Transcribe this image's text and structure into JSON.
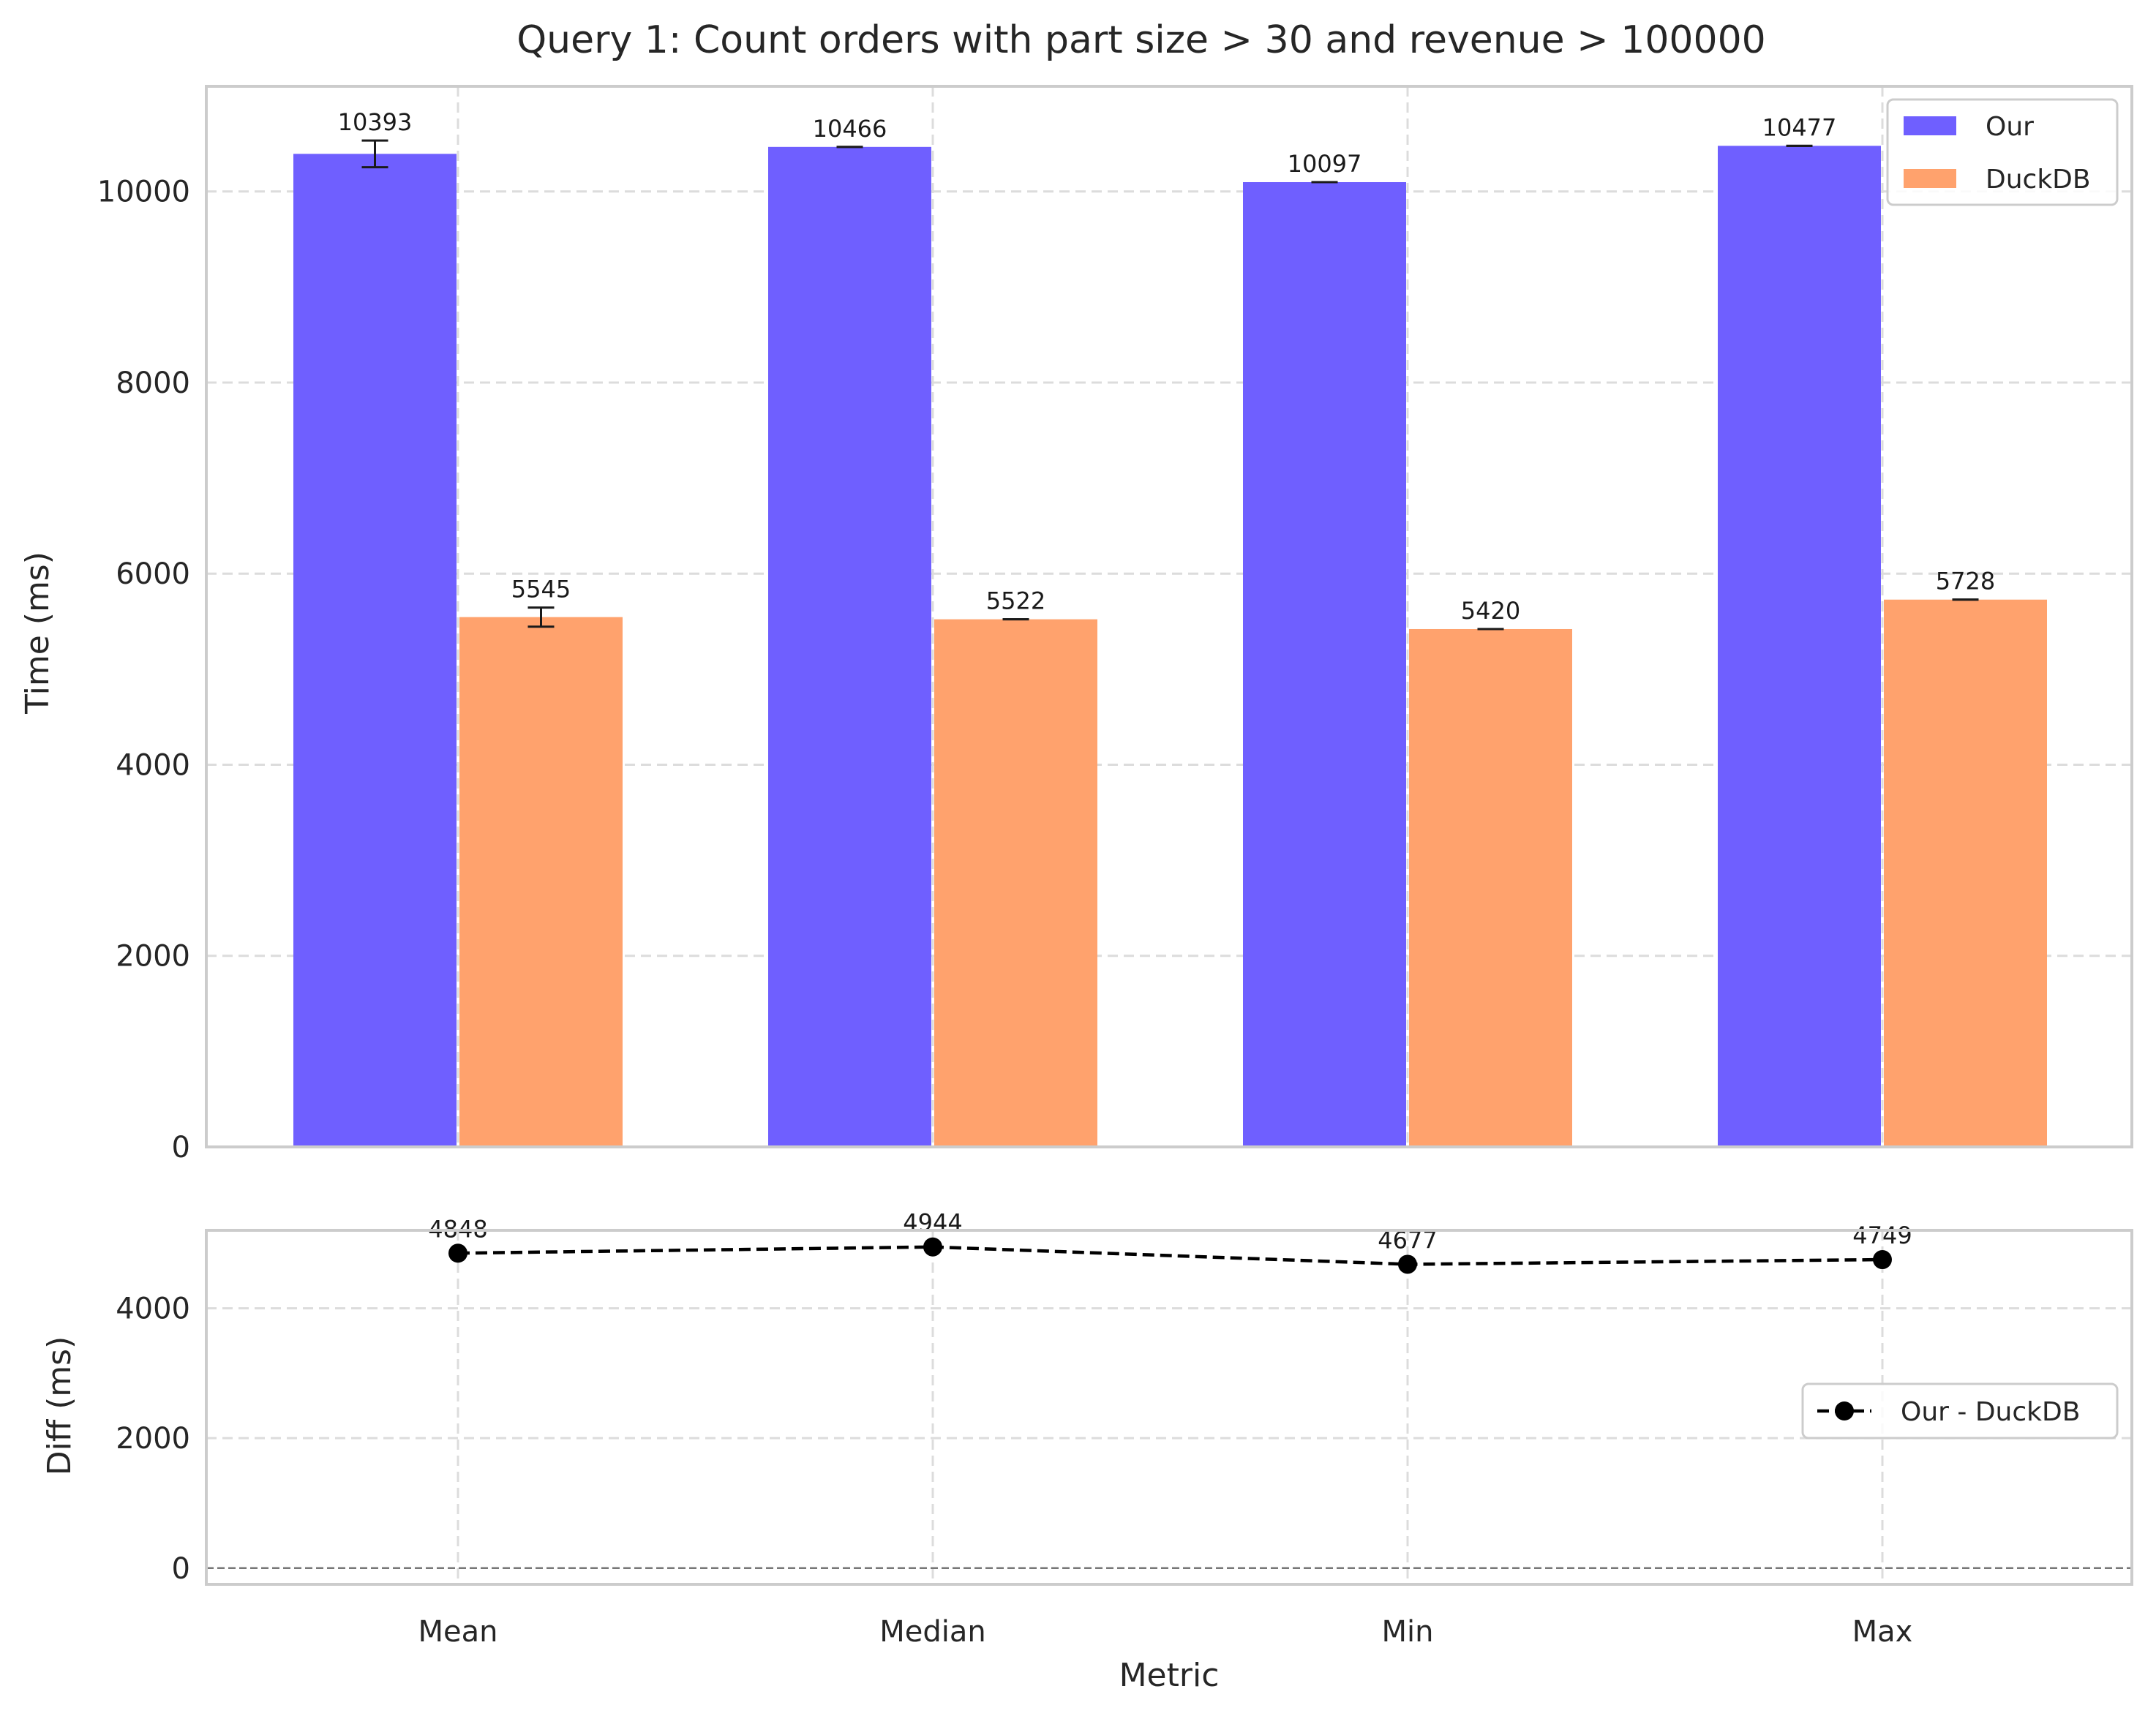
{
  "chart_data": [
    {
      "type": "bar",
      "title": "Query 1: Count orders with part size > 30 and revenue > 100000",
      "xlabel": "",
      "ylabel": "Time (ms)",
      "ylim": [
        0,
        11100
      ],
      "yticks": [
        0,
        2000,
        4000,
        6000,
        8000,
        10000
      ],
      "categories": [
        "Mean",
        "Median",
        "Min",
        "Max"
      ],
      "grid": true,
      "legend_position": "top-right",
      "series": [
        {
          "name": "Our",
          "color": "#6f5fff",
          "values": [
            10393,
            10466,
            10097,
            10477
          ],
          "errors": [
            140,
            0,
            0,
            0
          ],
          "labels": [
            "10393",
            "10466",
            "10097",
            "10477"
          ]
        },
        {
          "name": "DuckDB",
          "color": "#ffa26d",
          "values": [
            5545,
            5522,
            5420,
            5728
          ],
          "errors": [
            100,
            0,
            0,
            0
          ],
          "labels": [
            "5545",
            "5522",
            "5420",
            "5728"
          ]
        }
      ]
    },
    {
      "type": "line",
      "xlabel": "Metric",
      "ylabel": "Diff (ms)",
      "ylim": [
        -250,
        5200
      ],
      "yticks": [
        0,
        2000,
        4000
      ],
      "categories": [
        "Mean",
        "Median",
        "Min",
        "Max"
      ],
      "grid": true,
      "zero_line": true,
      "legend_position": "center-right",
      "series": [
        {
          "name": "Our - DuckDB",
          "color": "#000000",
          "style": "dashed-with-markers",
          "values": [
            4848,
            4944,
            4677,
            4749
          ],
          "labels": [
            "4848",
            "4944",
            "4677",
            "4749"
          ]
        }
      ]
    }
  ]
}
